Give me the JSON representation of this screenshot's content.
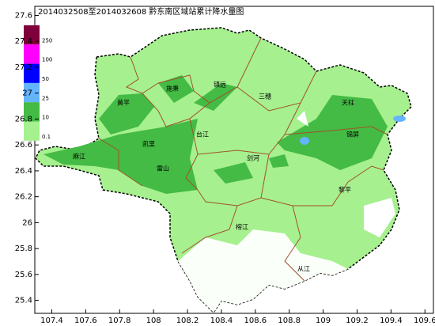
{
  "title": "2014032508至2014032608 黔东南区域站累计降水量图",
  "axes": {
    "xlim": [
      107.3,
      109.65
    ],
    "xticks": [
      107.4,
      107.6,
      107.8,
      108,
      108.2,
      108.4,
      108.6,
      108.8,
      109,
      109.2,
      109.4,
      109.6
    ],
    "ylim": [
      25.3,
      27.67
    ],
    "yticks": [
      25.4,
      25.6,
      25.8,
      26,
      26.2,
      26.4,
      26.6,
      26.8,
      27,
      27.2,
      27.4,
      27.6
    ]
  },
  "legend": [
    {
      "label": "250",
      "color": "#80003c"
    },
    {
      "label": "100",
      "color": "#ff00ff"
    },
    {
      "label": "50",
      "color": "#0000ff"
    },
    {
      "label": "25",
      "color": "#64b4ff"
    },
    {
      "label": "10",
      "color": "#44bb44"
    },
    {
      "label": "0.1",
      "color": "#a6f08f"
    }
  ],
  "places": [
    "黄平",
    "施秉",
    "镇远",
    "三穗",
    "天柱",
    "锦屏",
    "台江",
    "凯里",
    "麻江",
    "雷山",
    "剑河",
    "黎平",
    "榕江",
    "从江"
  ]
}
